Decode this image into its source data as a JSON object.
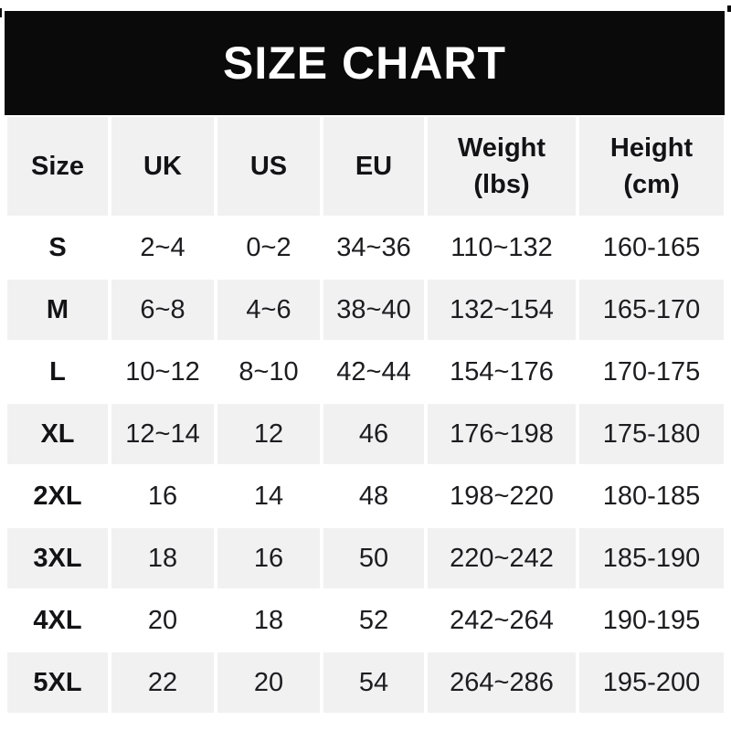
{
  "banner": {
    "title": "SIZE CHART",
    "bg_color": "#0a0a0a",
    "text_color": "#ffffff"
  },
  "table": {
    "columns": [
      {
        "key": "size",
        "label": "Size"
      },
      {
        "key": "uk",
        "label": "UK"
      },
      {
        "key": "us",
        "label": "US"
      },
      {
        "key": "eu",
        "label": "EU"
      },
      {
        "key": "weight",
        "label": "Weight\n(lbs)"
      },
      {
        "key": "height",
        "label": "Height\n(cm)"
      }
    ],
    "rows": [
      {
        "size": "S",
        "uk": "2~4",
        "us": "0~2",
        "eu": "34~36",
        "weight": "110~132",
        "height": "160-165"
      },
      {
        "size": "M",
        "uk": "6~8",
        "us": "4~6",
        "eu": "38~40",
        "weight": "132~154",
        "height": "165-170"
      },
      {
        "size": "L",
        "uk": "10~12",
        "us": "8~10",
        "eu": "42~44",
        "weight": "154~176",
        "height": "170-175"
      },
      {
        "size": "XL",
        "uk": "12~14",
        "us": "12",
        "eu": "46",
        "weight": "176~198",
        "height": "175-180"
      },
      {
        "size": "2XL",
        "uk": "16",
        "us": "14",
        "eu": "48",
        "weight": "198~220",
        "height": "180-185"
      },
      {
        "size": "3XL",
        "uk": "18",
        "us": "16",
        "eu": "50",
        "weight": "220~242",
        "height": "185-190"
      },
      {
        "size": "4XL",
        "uk": "20",
        "us": "18",
        "eu": "52",
        "weight": "242~264",
        "height": "190-195"
      },
      {
        "size": "5XL",
        "uk": "22",
        "us": "20",
        "eu": "54",
        "weight": "264~286",
        "height": "195-200"
      }
    ],
    "colors": {
      "alt_row_bg": "#f1f1f2",
      "header_bg": "#f1f1f2",
      "text": "#1d1d20"
    }
  },
  "chart_data": {
    "type": "table",
    "title": "SIZE CHART",
    "columns": [
      "Size",
      "UK",
      "US",
      "EU",
      "Weight (lbs)",
      "Height (cm)"
    ],
    "rows": [
      [
        "S",
        "2~4",
        "0~2",
        "34~36",
        "110~132",
        "160-165"
      ],
      [
        "M",
        "6~8",
        "4~6",
        "38~40",
        "132~154",
        "165-170"
      ],
      [
        "L",
        "10~12",
        "8~10",
        "42~44",
        "154~176",
        "170-175"
      ],
      [
        "XL",
        "12~14",
        "12",
        "46",
        "176~198",
        "175-180"
      ],
      [
        "2XL",
        "16",
        "14",
        "48",
        "198~220",
        "180-185"
      ],
      [
        "3XL",
        "18",
        "16",
        "50",
        "220~242",
        "185-190"
      ],
      [
        "4XL",
        "20",
        "18",
        "52",
        "242~264",
        "190-195"
      ],
      [
        "5XL",
        "22",
        "20",
        "54",
        "264~286",
        "195-200"
      ]
    ]
  }
}
